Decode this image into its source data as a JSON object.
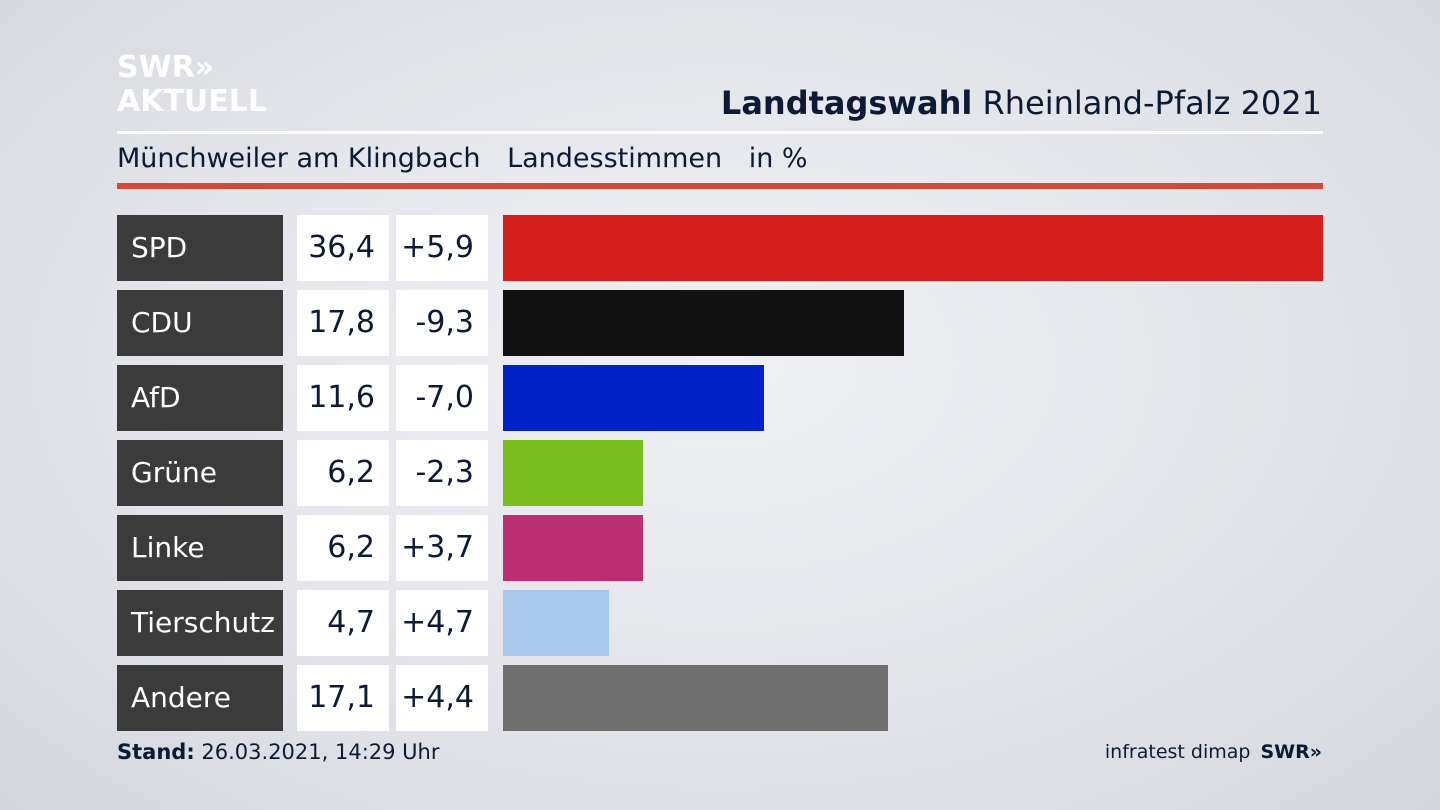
{
  "logo": {
    "line1": "SWR»",
    "line2": "AKTUELL"
  },
  "header": {
    "title_bold": "Landtagswahl",
    "title_rest": " Rheinland-Pfalz 2021"
  },
  "subheader": {
    "location": "Münchweiler am Klingbach",
    "measure": "Landesstimmen",
    "unit": "in %"
  },
  "chart_data": {
    "type": "bar",
    "orientation": "horizontal",
    "categories": [
      "SPD",
      "CDU",
      "AfD",
      "Grüne",
      "Linke",
      "Tierschutz",
      "Andere"
    ],
    "values": [
      36.4,
      17.8,
      11.6,
      6.2,
      6.2,
      4.7,
      17.1
    ],
    "value_labels": [
      "36,4",
      "17,8",
      "11,6",
      "6,2",
      "6,2",
      "4,7",
      "17,1"
    ],
    "diff_labels": [
      "+5,9",
      "-9,3",
      "-7,0",
      "-2,3",
      "+3,7",
      "+4,7",
      "+4,4"
    ],
    "diffs": [
      5.9,
      -9.3,
      -7.0,
      -2.3,
      3.7,
      4.7,
      4.4
    ],
    "colors": [
      "#d51f1f",
      "#121212",
      "#0020c8",
      "#79bd1e",
      "#be2e72",
      "#a9c8f0",
      "#6f6f70"
    ],
    "xlim": [
      0,
      36.4
    ]
  },
  "footer": {
    "stand_label": "Stand:",
    "stand_value": " 26.03.2021, 14:29 Uhr",
    "source": "infratest dimap",
    "brand": "SWR»"
  }
}
